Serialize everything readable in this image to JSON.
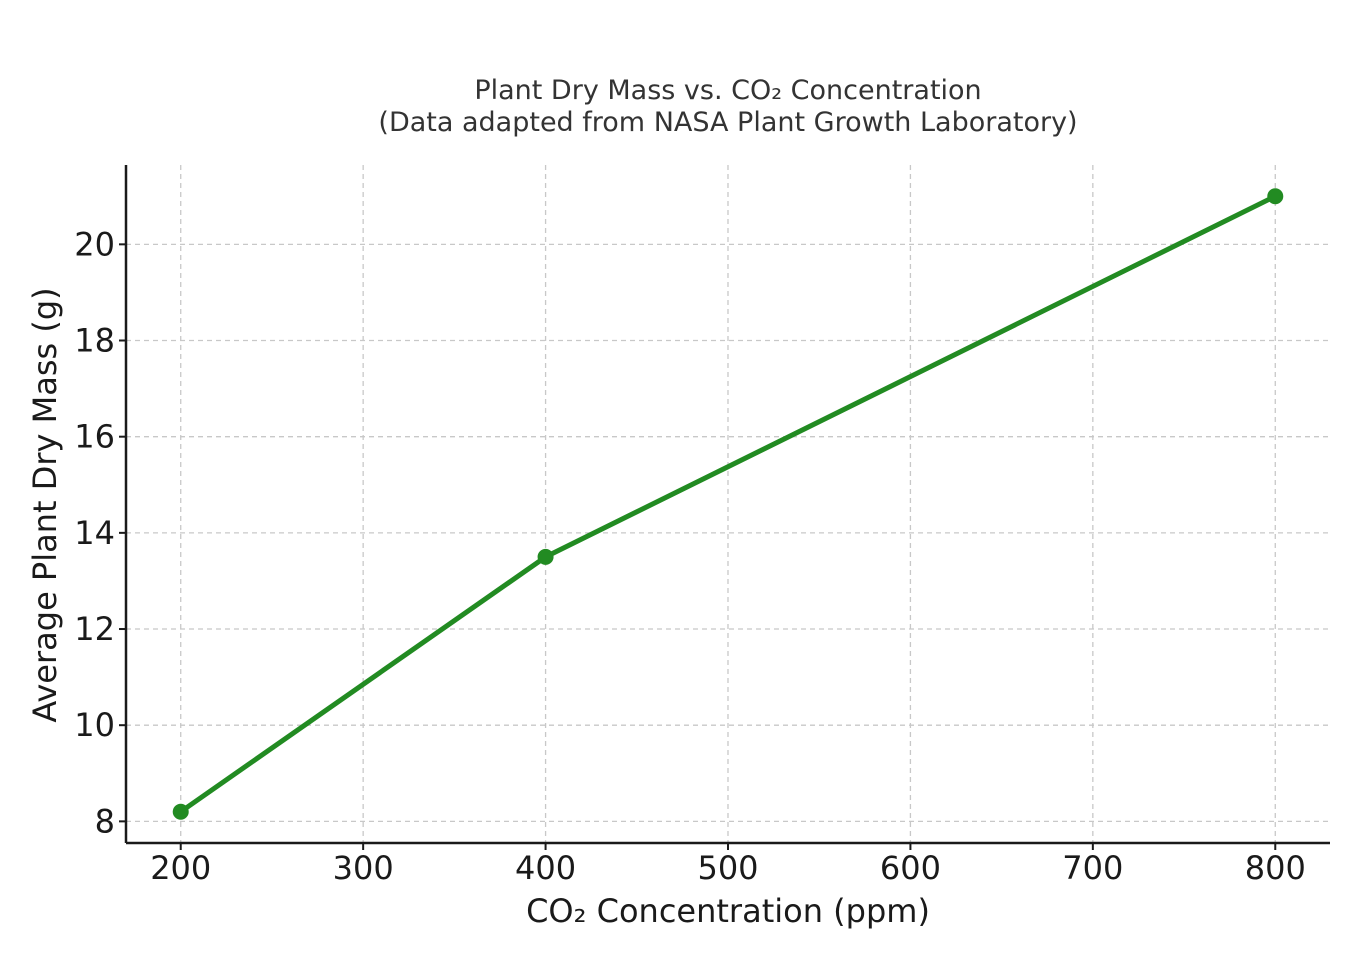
{
  "chart_data": {
    "type": "line",
    "title": "Plant Dry Mass vs. CO₂ Concentration",
    "subtitle": "(Data adapted from NASA Plant Growth Laboratory)",
    "xlabel": "CO₂ Concentration (ppm)",
    "ylabel": "Average Plant Dry Mass (g)",
    "x": [
      200,
      400,
      800
    ],
    "series": [
      {
        "values": [
          8.2,
          13.5,
          21.0
        ],
        "color": "#228B22"
      }
    ],
    "xlim": [
      170,
      830
    ],
    "ylim": [
      7.55,
      21.65
    ],
    "xticks": [
      200,
      300,
      400,
      500,
      600,
      700,
      800
    ],
    "yticks": [
      8,
      10,
      12,
      14,
      16,
      18,
      20
    ],
    "grid": true,
    "legend": "none"
  }
}
